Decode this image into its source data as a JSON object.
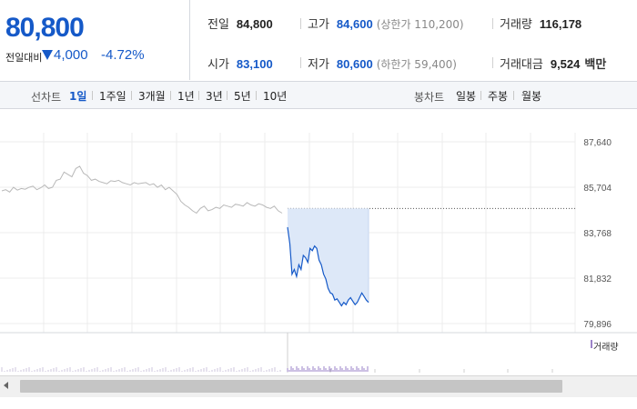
{
  "summary": {
    "current_price": "80,800",
    "change_label": "전일대비",
    "change_value": "4,000",
    "change_percent": "-4.72%",
    "prev_close_label": "전일",
    "prev_close": "84,800",
    "high_label": "고가",
    "high": "84,600",
    "upper_limit": "(상한가 110,200)",
    "volume_label": "거래량",
    "volume": "116,178",
    "open_label": "시가",
    "open": "83,100",
    "low_label": "저가",
    "low": "80,600",
    "lower_limit": "(하한가 59,400)",
    "amount_label": "거래대금",
    "amount": "9,524",
    "amount_unit": "백만"
  },
  "toolbar": {
    "line_chart_label": "선차트",
    "line_periods": [
      "1일",
      "1주일",
      "3개월",
      "1년",
      "3년",
      "5년",
      "10년"
    ],
    "active_period": "1일",
    "candle_chart_label": "봉차트",
    "candle_periods": [
      "일봉",
      "주봉",
      "월봉"
    ]
  },
  "colors": {
    "price_blue": "#1559c8",
    "prev_day_line": "#b8b8b8",
    "fill": "#dde8f8",
    "volume": "#9b83c8"
  },
  "chart_data": {
    "type": "line",
    "y_ticks": [
      "87,640",
      "85,704",
      "83,768",
      "81,832",
      "79,896"
    ],
    "ylim": [
      79896,
      87640
    ],
    "reference_line": 84800,
    "series": [
      {
        "role": "previous-day",
        "values": [
          85550,
          85600,
          85500,
          85700,
          85580,
          85650,
          85620,
          85700,
          85750,
          85600,
          85680,
          85800,
          85650,
          85700,
          86000,
          86050,
          86350,
          86250,
          86150,
          86500,
          86600,
          86300,
          86200,
          86000,
          86050,
          85950,
          85900,
          85850,
          85980,
          85950,
          86000,
          85900,
          85850,
          85800,
          85900,
          85850,
          85880,
          85900,
          85800,
          85850,
          85700,
          85800,
          85600,
          85700,
          85550,
          85400,
          85100,
          84950,
          84850,
          84700,
          84600,
          84800,
          84900,
          84700,
          84750,
          84850,
          84800,
          84950,
          84900,
          84850,
          84980,
          84950,
          84900,
          85050,
          84950,
          84900,
          85000,
          84950,
          84850,
          84800,
          84900,
          84700,
          84600
        ]
      },
      {
        "role": "today",
        "values": [
          84000,
          83300,
          82000,
          82200,
          81900,
          82400,
          82200,
          82800,
          82700,
          82500,
          83100,
          83000,
          83200,
          83100,
          82600,
          82400,
          82000,
          81800,
          81400,
          81200,
          81150,
          80900,
          80950,
          80800,
          80650,
          80800,
          80700,
          80900,
          81000,
          80850,
          80700,
          80800,
          81000,
          81200,
          81050,
          80900,
          80800
        ]
      }
    ],
    "volume_legend": "거래량"
  }
}
